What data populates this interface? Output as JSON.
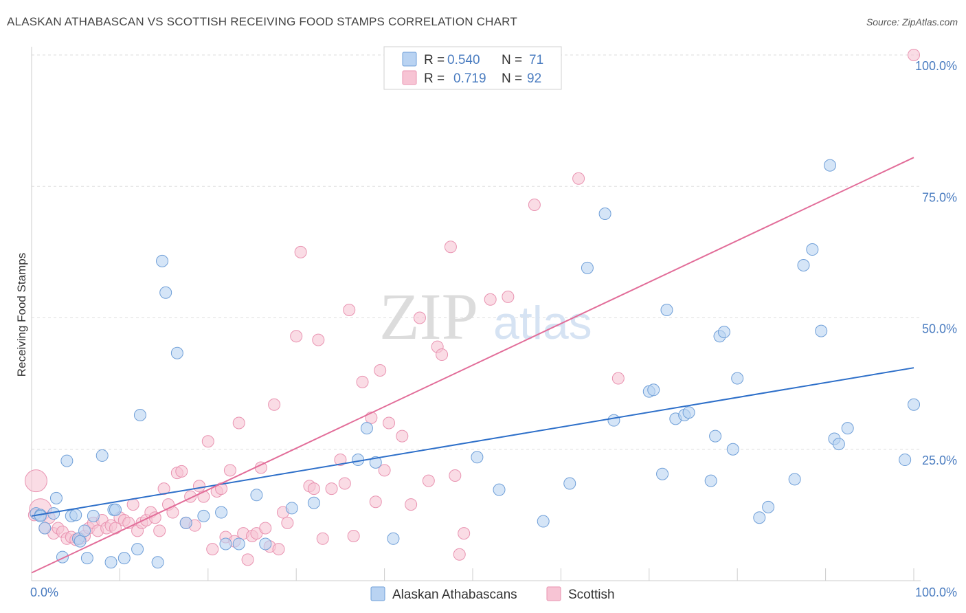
{
  "title": "ALASKAN ATHABASCAN VS SCOTTISH RECEIVING FOOD STAMPS CORRELATION CHART",
  "source": "Source: ZipAtlas.com",
  "watermark": {
    "zip": "ZIP",
    "atlas": "atlas"
  },
  "colors": {
    "blue_fill": "#b9d3f2",
    "blue_stroke": "#6f9fd8",
    "blue_line": "#2d6fc9",
    "pink_fill": "#f7c4d4",
    "pink_stroke": "#e993b1",
    "pink_line": "#e26d99",
    "grid": "#dddddd",
    "tick_text": "#4a7cc0"
  },
  "legend": {
    "rows": [
      {
        "r_label": "R =",
        "r_value": "0.540",
        "n_label": "N =",
        "n_value": "71",
        "color": "blue"
      },
      {
        "r_label": "R =",
        "r_value": "0.719",
        "n_label": "N =",
        "n_value": "92",
        "color": "pink"
      }
    ]
  },
  "bottom_legend": [
    "Alaskan Athabascans",
    "Scottish"
  ],
  "chart_data": {
    "type": "scatter",
    "title": "ALASKAN ATHABASCAN VS SCOTTISH RECEIVING FOOD STAMPS CORRELATION CHART",
    "xlabel": "",
    "ylabel": "Receiving Food Stamps",
    "xlim": [
      0,
      100
    ],
    "ylim": [
      0,
      100
    ],
    "x_tick_labels": [
      "0.0%",
      "100.0%"
    ],
    "y_tick_labels": [
      {
        "value": 25,
        "label": "25.0%"
      },
      {
        "value": 50,
        "label": "50.0%"
      },
      {
        "value": 75,
        "label": "75.0%"
      },
      {
        "value": 100,
        "label": "100.0%"
      }
    ],
    "grid": true,
    "legend_position": "top-center",
    "series": [
      {
        "name": "Alaskan Athabascans",
        "color": "blue",
        "trend": {
          "x0": 0,
          "y0": 12.3,
          "x1": 100,
          "y1": 40.5
        },
        "points": [
          [
            0.5,
            12.8
          ],
          [
            1.0,
            12.5
          ],
          [
            1.5,
            10.0
          ],
          [
            2.5,
            12.8
          ],
          [
            2.8,
            15.7
          ],
          [
            3.5,
            4.5
          ],
          [
            4.0,
            22.8
          ],
          [
            4.5,
            12.3
          ],
          [
            5.0,
            12.5
          ],
          [
            5.3,
            8.0
          ],
          [
            5.5,
            7.5
          ],
          [
            6.0,
            9.5
          ],
          [
            6.3,
            4.3
          ],
          [
            7.0,
            12.3
          ],
          [
            8.0,
            23.8
          ],
          [
            9.0,
            3.5
          ],
          [
            9.3,
            13.5
          ],
          [
            9.5,
            13.5
          ],
          [
            10.5,
            4.3
          ],
          [
            12.0,
            6.0
          ],
          [
            12.3,
            31.5
          ],
          [
            14.3,
            3.5
          ],
          [
            14.8,
            60.8
          ],
          [
            15.2,
            54.8
          ],
          [
            16.5,
            43.3
          ],
          [
            17.5,
            11.0
          ],
          [
            19.5,
            12.3
          ],
          [
            21.5,
            13.0
          ],
          [
            22.0,
            7.0
          ],
          [
            23.5,
            7.0
          ],
          [
            25.5,
            16.3
          ],
          [
            26.5,
            7.0
          ],
          [
            29.5,
            13.8
          ],
          [
            32.0,
            14.8
          ],
          [
            37.0,
            23.0
          ],
          [
            38.0,
            29.0
          ],
          [
            39.0,
            22.5
          ],
          [
            41.0,
            8.0
          ],
          [
            50.5,
            23.5
          ],
          [
            53.0,
            17.3
          ],
          [
            58.0,
            11.3
          ],
          [
            61.0,
            18.5
          ],
          [
            63.0,
            59.5
          ],
          [
            65.0,
            69.8
          ],
          [
            66.0,
            30.5
          ],
          [
            70.0,
            36.0
          ],
          [
            70.5,
            36.3
          ],
          [
            71.5,
            20.3
          ],
          [
            72.0,
            51.5
          ],
          [
            73.0,
            30.8
          ],
          [
            74.0,
            31.5
          ],
          [
            74.5,
            32.0
          ],
          [
            77.0,
            19.0
          ],
          [
            77.5,
            27.5
          ],
          [
            78.0,
            46.5
          ],
          [
            78.5,
            47.3
          ],
          [
            79.5,
            25.0
          ],
          [
            80.0,
            38.5
          ],
          [
            82.5,
            12.0
          ],
          [
            83.5,
            14.0
          ],
          [
            86.5,
            19.3
          ],
          [
            87.5,
            60.0
          ],
          [
            88.5,
            63.0
          ],
          [
            89.5,
            47.5
          ],
          [
            90.5,
            79.0
          ],
          [
            91.0,
            27.0
          ],
          [
            91.5,
            26.0
          ],
          [
            92.5,
            29.0
          ],
          [
            99.0,
            23.0
          ],
          [
            100.0,
            33.5
          ],
          [
            1.0,
            12.3
          ]
        ]
      },
      {
        "name": "Scottish",
        "color": "pink",
        "trend": {
          "x0": 0,
          "y0": 1.5,
          "x1": 100,
          "y1": 80.5
        },
        "points": [
          [
            0.5,
            19.0
          ],
          [
            1.0,
            13.5
          ],
          [
            1.5,
            10.0
          ],
          [
            2.0,
            12.0
          ],
          [
            2.5,
            9.0
          ],
          [
            3.0,
            10.0
          ],
          [
            3.5,
            9.3
          ],
          [
            4.0,
            8.0
          ],
          [
            4.5,
            8.3
          ],
          [
            5.0,
            7.8
          ],
          [
            5.5,
            8.0
          ],
          [
            6.0,
            8.5
          ],
          [
            6.5,
            10.0
          ],
          [
            7.0,
            11.0
          ],
          [
            7.5,
            9.5
          ],
          [
            8.0,
            11.5
          ],
          [
            8.5,
            10.0
          ],
          [
            9.0,
            10.5
          ],
          [
            9.5,
            10.0
          ],
          [
            10.0,
            12.0
          ],
          [
            10.5,
            11.5
          ],
          [
            11.0,
            11.0
          ],
          [
            11.5,
            14.5
          ],
          [
            12.0,
            9.5
          ],
          [
            12.5,
            11.0
          ],
          [
            13.0,
            11.5
          ],
          [
            13.5,
            13.0
          ],
          [
            14.0,
            12.0
          ],
          [
            14.5,
            9.5
          ],
          [
            15.0,
            17.5
          ],
          [
            15.5,
            14.5
          ],
          [
            16.0,
            13.0
          ],
          [
            16.5,
            20.5
          ],
          [
            17.0,
            20.8
          ],
          [
            17.5,
            11.0
          ],
          [
            18.0,
            16.0
          ],
          [
            18.5,
            10.5
          ],
          [
            19.0,
            18.0
          ],
          [
            19.5,
            16.0
          ],
          [
            20.0,
            26.5
          ],
          [
            20.5,
            6.0
          ],
          [
            21.0,
            17.0
          ],
          [
            21.5,
            17.5
          ],
          [
            22.0,
            8.3
          ],
          [
            22.5,
            21.0
          ],
          [
            23.0,
            7.5
          ],
          [
            23.5,
            30.0
          ],
          [
            24.0,
            9.0
          ],
          [
            24.5,
            4.0
          ],
          [
            25.0,
            8.5
          ],
          [
            25.5,
            9.0
          ],
          [
            26.0,
            21.5
          ],
          [
            26.5,
            10.0
          ],
          [
            27.0,
            6.5
          ],
          [
            27.5,
            33.5
          ],
          [
            28.0,
            6.0
          ],
          [
            28.5,
            13.0
          ],
          [
            29.0,
            11.0
          ],
          [
            30.0,
            46.5
          ],
          [
            30.5,
            62.5
          ],
          [
            31.5,
            18.0
          ],
          [
            32.0,
            17.5
          ],
          [
            32.5,
            45.8
          ],
          [
            33.0,
            8.0
          ],
          [
            34.0,
            17.5
          ],
          [
            35.0,
            23.0
          ],
          [
            35.5,
            18.5
          ],
          [
            36.0,
            51.5
          ],
          [
            36.5,
            8.5
          ],
          [
            37.5,
            37.8
          ],
          [
            38.5,
            31.0
          ],
          [
            39.0,
            15.0
          ],
          [
            39.5,
            40.0
          ],
          [
            40.0,
            21.0
          ],
          [
            40.5,
            30.0
          ],
          [
            42.0,
            27.5
          ],
          [
            43.0,
            14.5
          ],
          [
            44.0,
            50.0
          ],
          [
            45.0,
            19.0
          ],
          [
            46.0,
            44.5
          ],
          [
            46.5,
            43.0
          ],
          [
            47.5,
            63.5
          ],
          [
            48.0,
            20.0
          ],
          [
            48.5,
            5.0
          ],
          [
            49.0,
            9.0
          ],
          [
            52.0,
            53.5
          ],
          [
            54.0,
            54.0
          ],
          [
            57.0,
            71.5
          ],
          [
            62.0,
            76.5
          ],
          [
            66.5,
            38.5
          ],
          [
            100.0,
            100.0
          ],
          [
            0.3,
            12.5
          ]
        ]
      }
    ]
  }
}
